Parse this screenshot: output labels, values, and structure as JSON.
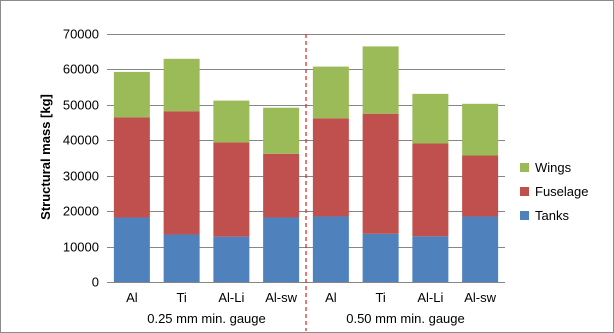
{
  "chart_data": {
    "type": "bar",
    "stacked": true,
    "ylabel": "Structural mass [kg]",
    "ylim": [
      0,
      70000
    ],
    "yticks": [
      0,
      10000,
      20000,
      30000,
      40000,
      50000,
      60000,
      70000
    ],
    "grid": true,
    "legend_position": "right",
    "categories": [
      "Al",
      "Ti",
      "Al-Li",
      "Al-sw",
      "Al",
      "Ti",
      "Al-Li",
      "Al-sw"
    ],
    "groups": [
      {
        "label": "0.25 mm min. gauge",
        "categories": [
          "Al",
          "Ti",
          "Al-Li",
          "Al-sw"
        ]
      },
      {
        "label": "0.50 mm min. gauge",
        "categories": [
          "Al",
          "Ti",
          "Al-Li",
          "Al-sw"
        ]
      }
    ],
    "series": [
      {
        "name": "Tanks",
        "color": "#4f81bd",
        "values": [
          18200,
          13400,
          12800,
          18200,
          18500,
          13600,
          12900,
          18500
        ]
      },
      {
        "name": "Fuselage",
        "color": "#c0504d",
        "values": [
          28300,
          34800,
          26600,
          18000,
          27700,
          33900,
          26200,
          17200
        ]
      },
      {
        "name": "Wings",
        "color": "#9bbb59",
        "values": [
          12800,
          14800,
          11800,
          13000,
          14600,
          19000,
          14000,
          14600
        ]
      }
    ],
    "legend_order": [
      "Wings",
      "Fuselage",
      "Tanks"
    ],
    "divider": {
      "after_category_index": 3,
      "color": "#e0201b",
      "style": "dashed"
    }
  }
}
